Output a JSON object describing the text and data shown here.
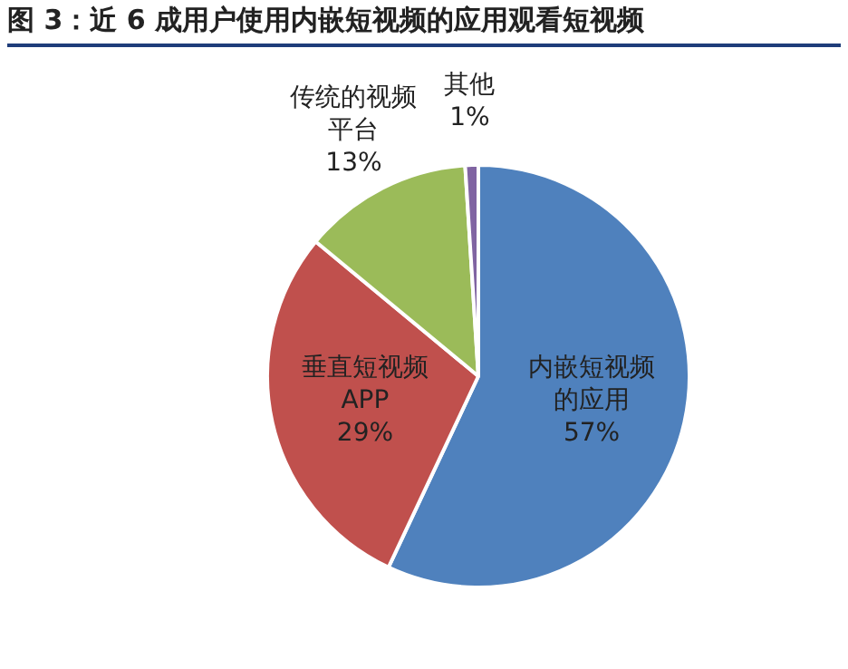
{
  "chart_data": {
    "type": "pie",
    "title": "图 3：近 6 成用户使用内嵌短视频的应用观看短视频",
    "categories": [
      "内嵌短视频的应用",
      "垂直短视频APP",
      "传统的视频平台",
      "其他"
    ],
    "values": [
      57,
      29,
      13,
      1
    ],
    "colors": [
      "#4f81bd",
      "#c0504d",
      "#9bbb59",
      "#8064a2"
    ],
    "value_labels": [
      "57%",
      "29%",
      "13%",
      "1%"
    ],
    "legend": false
  }
}
